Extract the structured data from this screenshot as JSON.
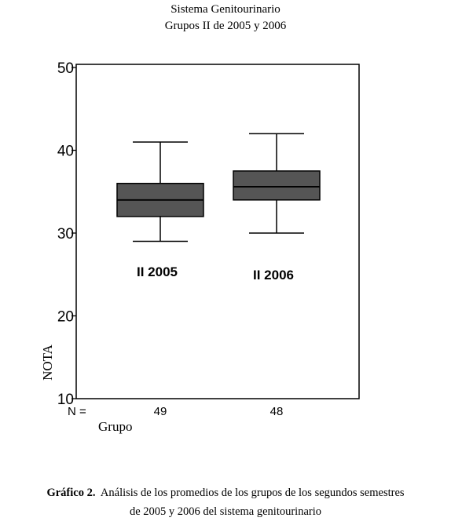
{
  "title": "Sistema Genitourinario",
  "subtitle": "Grupos II de 2005 y 2006",
  "caption": {
    "label": "Gráfico 2.",
    "line1": "Análisis de los promedios de los grupos de los segundos semestres",
    "line2": "de 2005 y 2006 del sistema genitourinario"
  },
  "chart_data": {
    "type": "box",
    "ylabel": "NOTA",
    "xlabel": "Grupo",
    "n_label": "N =",
    "ylim": [
      10,
      50
    ],
    "yticks": [
      10,
      20,
      30,
      40,
      50
    ],
    "grid": false,
    "categories": [
      "II 2005",
      "II 2006"
    ],
    "boxes": [
      {
        "label": "II 2005",
        "n": "49",
        "min": 29,
        "q1": 32,
        "median": 34,
        "q3": 36,
        "max": 41
      },
      {
        "label": "II 2006",
        "n": "48",
        "min": 30,
        "q1": 34,
        "median": 35.6,
        "q3": 37.5,
        "max": 42
      }
    ],
    "box_color": "#555555"
  }
}
